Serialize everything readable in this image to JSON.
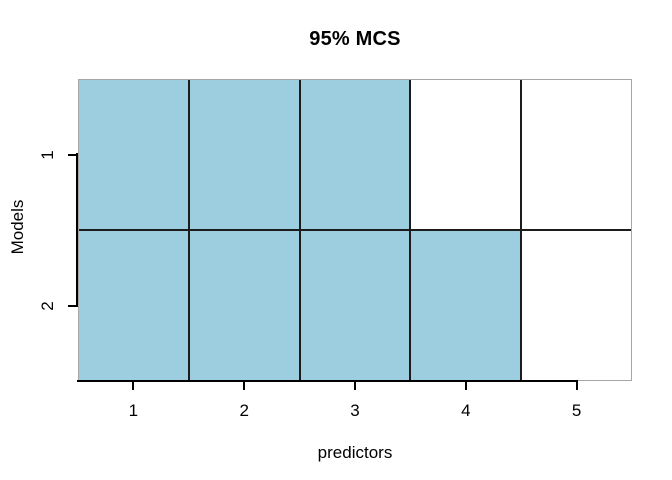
{
  "chart_data": {
    "type": "heatmap",
    "title": "95% MCS",
    "xlabel": "predictors",
    "ylabel": "Models",
    "x_ticks": [
      "1",
      "2",
      "3",
      "4",
      "5"
    ],
    "y_ticks": [
      "1",
      "2"
    ],
    "x_range": [
      0.5,
      5.5
    ],
    "y_range": [
      0.5,
      2.5
    ],
    "rows": [
      {
        "model": "1",
        "cells": [
          1,
          1,
          1,
          0,
          0
        ]
      },
      {
        "model": "2",
        "cells": [
          1,
          1,
          1,
          1,
          0
        ]
      }
    ],
    "fill_color": "#9dcee0",
    "empty_color": "#ffffff",
    "grid_line_color": "#1c1c1c",
    "box_color": "#a6a6a6",
    "axis_color": "#000000",
    "grid": "on",
    "legend_position": "none"
  }
}
